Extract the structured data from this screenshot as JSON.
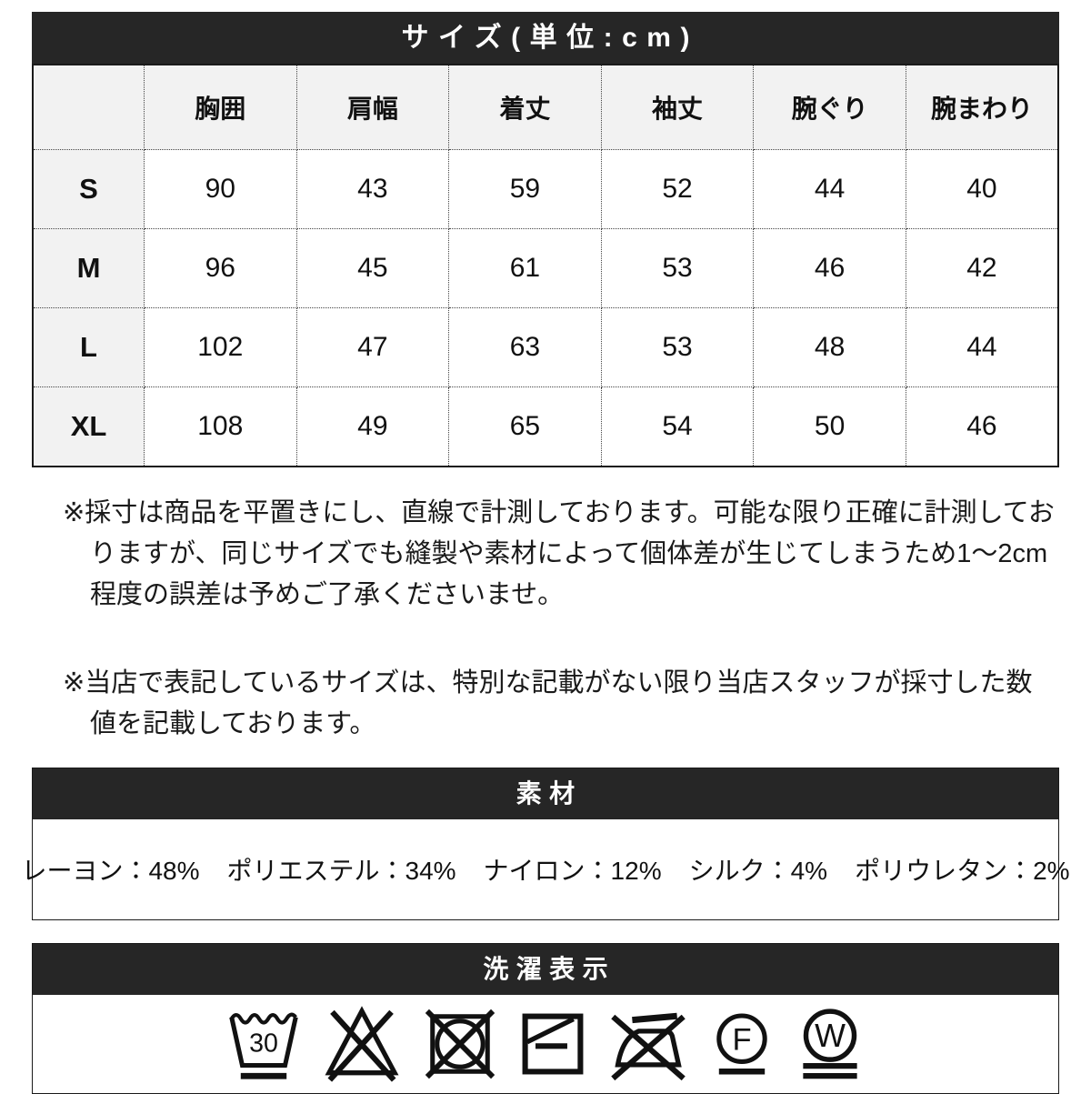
{
  "size_section": {
    "title": "サイズ(単位:cm)",
    "columns": [
      "胸囲",
      "肩幅",
      "着丈",
      "袖丈",
      "腕ぐり",
      "腕まわり"
    ],
    "rows": [
      {
        "size": "S",
        "values": [
          "90",
          "43",
          "59",
          "52",
          "44",
          "40"
        ]
      },
      {
        "size": "M",
        "values": [
          "96",
          "45",
          "61",
          "53",
          "46",
          "42"
        ]
      },
      {
        "size": "L",
        "values": [
          "102",
          "47",
          "63",
          "53",
          "48",
          "44"
        ]
      },
      {
        "size": "XL",
        "values": [
          "108",
          "49",
          "65",
          "54",
          "50",
          "46"
        ]
      }
    ]
  },
  "notes": [
    "※採寸は商品を平置きにし、直線で計測しております。可能な限り正確に計測しておりますが、同じサイズでも縫製や素材によって個体差が生じてしまうため1〜2cm程度の誤差は予めご了承くださいませ。",
    "※当店で表記しているサイズは、特別な記載がない限り当店スタッフが採寸した数値を記載しております。"
  ],
  "material_section": {
    "title": "素材",
    "materials": [
      {
        "name": "レーヨン",
        "percent": "48%"
      },
      {
        "name": "ポリエステル",
        "percent": "34%"
      },
      {
        "name": "ナイロン",
        "percent": "12%"
      },
      {
        "name": "シルク",
        "percent": "4%"
      },
      {
        "name": "ポリウレタン",
        "percent": "2%"
      }
    ]
  },
  "care_section": {
    "title": "洗濯表示",
    "wash_temp": "30",
    "dry_clean_letter": "F",
    "wet_clean_letter": "W",
    "symbols": [
      "wash-30-mild-icon",
      "do-not-bleach-icon",
      "do-not-tumble-dry-icon",
      "flat-dry-in-shade-icon",
      "do-not-iron-icon",
      "dry-clean-F-mild-icon",
      "wet-clean-W-very-mild-icon"
    ]
  },
  "colors": {
    "section_bar_bg": "#262626",
    "section_bar_text": "#ffffff",
    "header_cell_bg": "#f2f2f2",
    "body_bg": "#ffffff",
    "text": "#111111"
  }
}
